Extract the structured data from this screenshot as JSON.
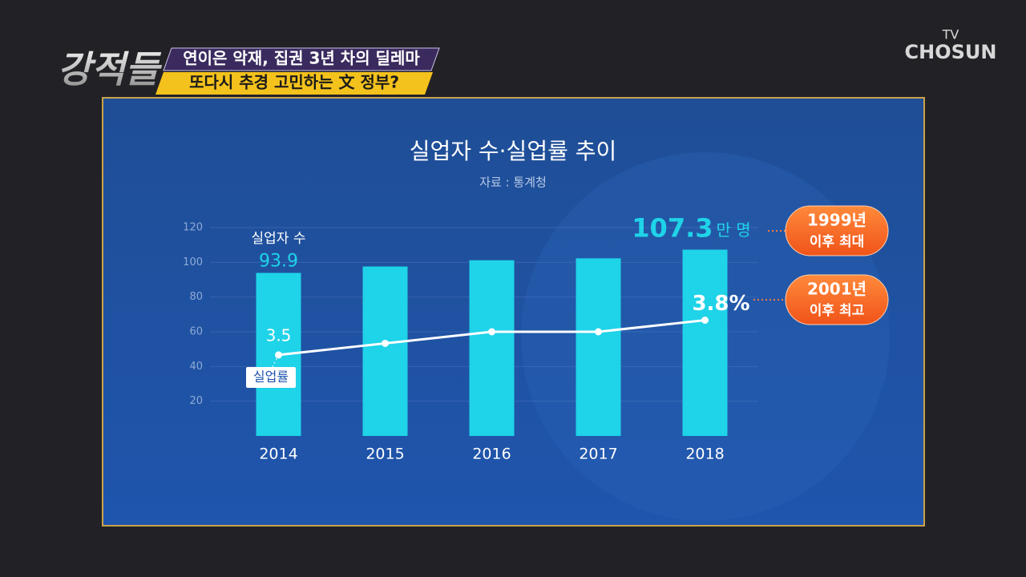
{
  "header": {
    "logo": "강적들",
    "headline1": "연이은 악재, 집권 3년 차의 딜레마",
    "headline2": "또다시 추경 고민하는 文 정부?",
    "channel1": "TV",
    "channel2": "CHOSUN"
  },
  "chart_data": {
    "type": "bar",
    "title": "실업자 수·실업률 추이",
    "subtitle": "자료 : 통계청",
    "categories": [
      "2014",
      "2015",
      "2016",
      "2017",
      "2018"
    ],
    "series": [
      {
        "name": "실업자 수",
        "type": "bar",
        "color": "#1fd3e8",
        "values": [
          93.9,
          97.6,
          101.2,
          102.3,
          107.3
        ],
        "value_labels": [
          "93.9",
          null,
          null,
          null,
          "107.3"
        ],
        "unit": "만 명"
      },
      {
        "name": "실업률",
        "type": "line",
        "axis": "y2",
        "color": "#ffffff",
        "values": [
          3.5,
          3.6,
          3.7,
          3.7,
          3.8
        ],
        "value_labels": [
          "3.5",
          null,
          null,
          null,
          "3.8%"
        ]
      }
    ],
    "ylim": [
      0,
      120
    ],
    "yticks": [
      20,
      40,
      60,
      80,
      100,
      120
    ],
    "y2lim": [
      2.8,
      4.6
    ],
    "grid": true,
    "annotations": [
      {
        "line1": "1999년",
        "line2": "이후 최대"
      },
      {
        "line1": "2001년",
        "line2": "이후 최고"
      }
    ]
  }
}
